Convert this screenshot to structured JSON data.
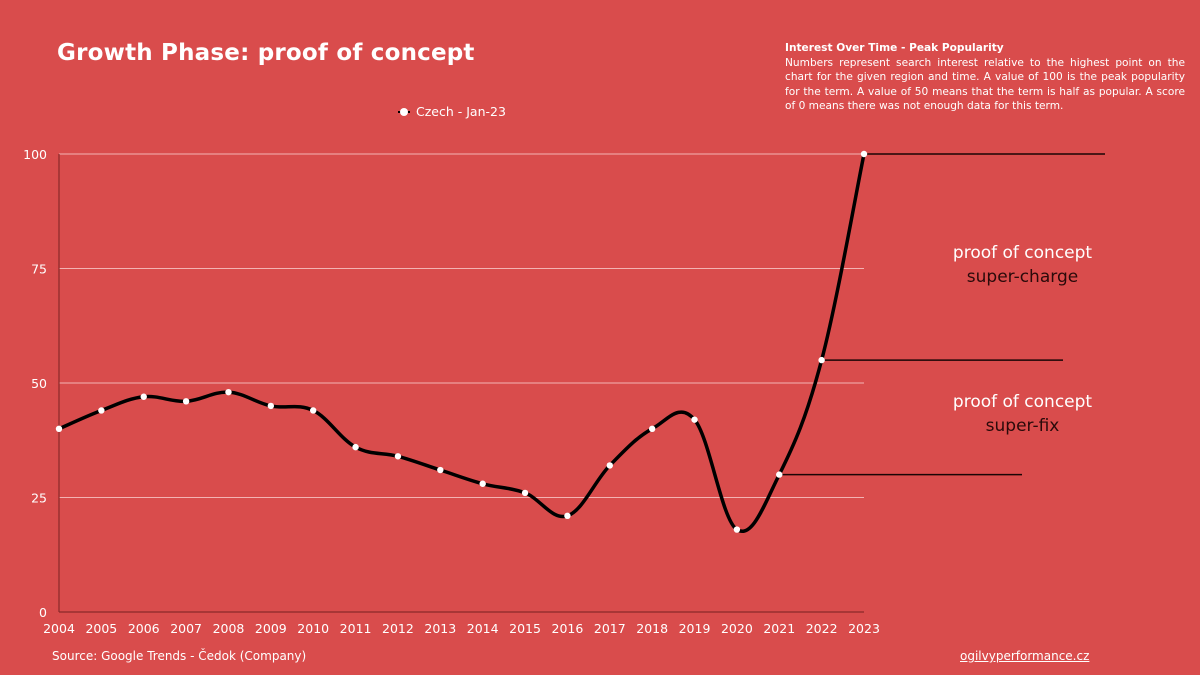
{
  "header": {
    "title": "Growth Phase: proof of concept"
  },
  "info": {
    "title": "Interest Over Time - Peak Popularity",
    "body": "Numbers represent search interest relative to the highest point on the chart for the given region and time. A value of 100 is the peak popularity for the term. A value of 50 means that the term is half as popular. A score of 0 means there was not enough data for this term."
  },
  "annotations": [
    {
      "line1": "proof of concept",
      "line2": "super-charge"
    },
    {
      "line1": "proof of concept",
      "line2": "super-fix"
    }
  ],
  "footer": {
    "source": "Source: Google Trends - Čedok (Company)",
    "website": "ogilvyperformance.cz"
  },
  "colors": {
    "background": "#d94c4c",
    "line": "#000000",
    "marker": "#ffffff",
    "grid": "#f3b3b3",
    "axis": "#8a2a2a"
  },
  "chart_data": {
    "type": "line",
    "title": "Growth Phase: proof of concept",
    "xlabel": "",
    "ylabel": "",
    "x": [
      "2004",
      "2005",
      "2006",
      "2007",
      "2008",
      "2009",
      "2010",
      "2011",
      "2012",
      "2013",
      "2014",
      "2015",
      "2016",
      "2017",
      "2018",
      "2019",
      "2020",
      "2021",
      "2022",
      "2023"
    ],
    "series": [
      {
        "name": "Czech - Jan-23",
        "values": [
          40,
          44,
          47,
          46,
          48,
          45,
          44,
          36,
          34,
          31,
          28,
          26,
          21,
          32,
          40,
          42,
          18,
          30,
          55,
          100
        ]
      }
    ],
    "ylim": [
      0,
      100
    ],
    "yticks": [
      0,
      25,
      50,
      75,
      100
    ],
    "grid": true,
    "legend": "top-center",
    "threshold_lines": [
      100,
      55,
      30
    ]
  }
}
